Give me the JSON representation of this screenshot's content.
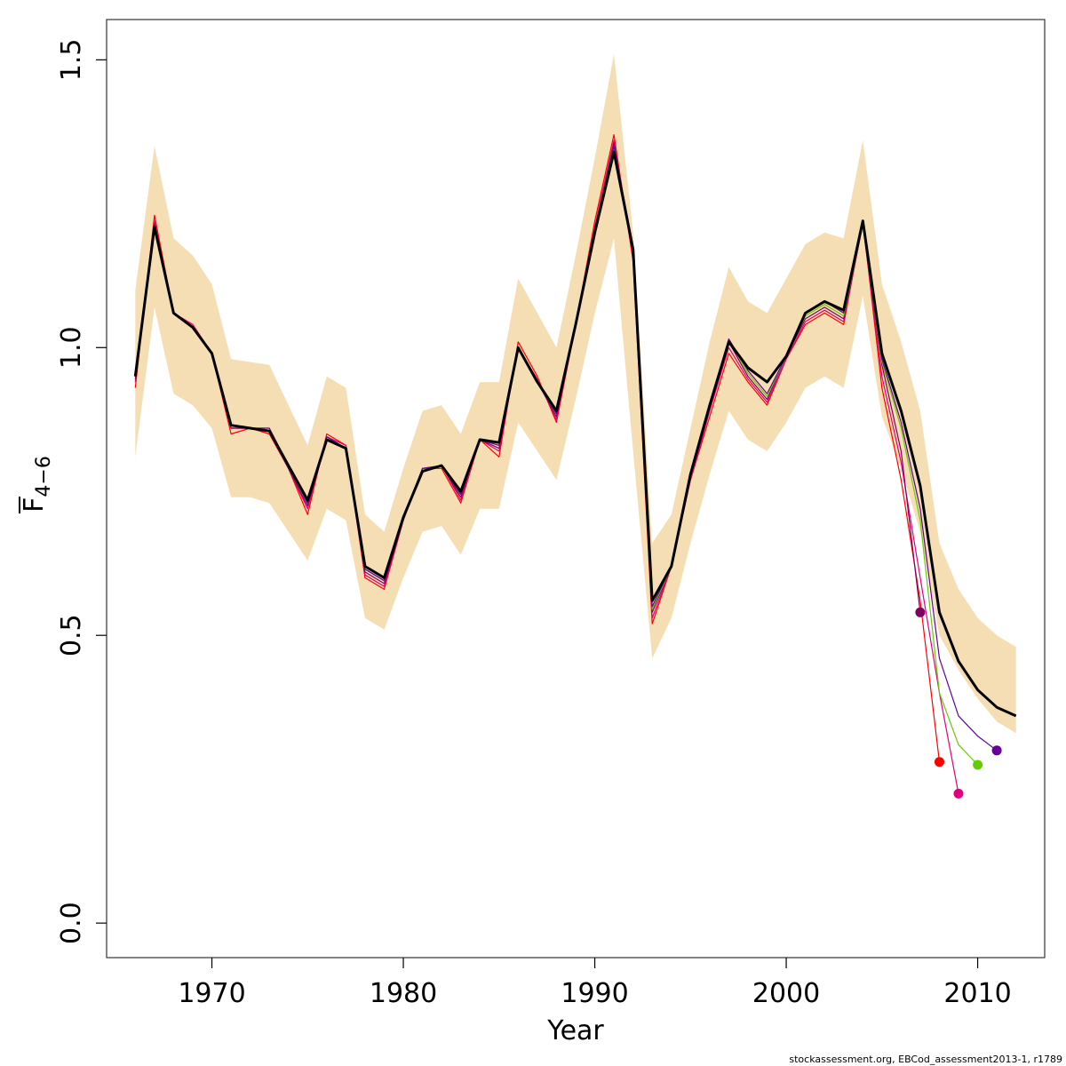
{
  "chart_data": {
    "type": "line",
    "xlabel": "Year",
    "ylabel_main": "F",
    "ylabel_sub": "4−6",
    "xlim": [
      1964.5,
      2013.5
    ],
    "ylim": [
      -0.06,
      1.57
    ],
    "x_ticks": [
      {
        "value": 1970,
        "label": "1970"
      },
      {
        "value": 1980,
        "label": "1980"
      },
      {
        "value": 1990,
        "label": "1990"
      },
      {
        "value": 2000,
        "label": "2000"
      },
      {
        "value": 2010,
        "label": "2010"
      }
    ],
    "y_ticks": [
      {
        "value": 0.0,
        "label": "0.0"
      },
      {
        "value": 0.5,
        "label": "0.5"
      },
      {
        "value": 1.0,
        "label": "1.0"
      },
      {
        "value": 1.5,
        "label": "1.5"
      }
    ],
    "band": {
      "color": "#f5deb3",
      "x": [
        1966,
        1967,
        1968,
        1969,
        1970,
        1971,
        1972,
        1973,
        1974,
        1975,
        1976,
        1977,
        1978,
        1979,
        1980,
        1981,
        1982,
        1983,
        1984,
        1985,
        1986,
        1987,
        1988,
        1989,
        1990,
        1991,
        1992,
        1993,
        1994,
        1995,
        1996,
        1997,
        1998,
        1999,
        2000,
        2001,
        2002,
        2003,
        2004,
        2005,
        2006,
        2007,
        2008,
        2009,
        2010,
        2011,
        2012
      ],
      "upper": [
        1.1,
        1.35,
        1.19,
        1.16,
        1.11,
        0.98,
        0.975,
        0.97,
        0.9,
        0.83,
        0.95,
        0.93,
        0.71,
        0.68,
        0.79,
        0.89,
        0.9,
        0.85,
        0.94,
        0.94,
        1.12,
        1.06,
        1.0,
        1.16,
        1.33,
        1.51,
        1.2,
        0.66,
        0.71,
        0.86,
        1.01,
        1.14,
        1.08,
        1.06,
        1.12,
        1.18,
        1.2,
        1.19,
        1.36,
        1.11,
        1.01,
        0.89,
        0.66,
        0.58,
        0.53,
        0.5,
        0.48
      ],
      "lower": [
        0.81,
        1.07,
        0.92,
        0.9,
        0.86,
        0.74,
        0.74,
        0.73,
        0.68,
        0.63,
        0.72,
        0.7,
        0.53,
        0.51,
        0.6,
        0.68,
        0.69,
        0.64,
        0.72,
        0.72,
        0.87,
        0.82,
        0.77,
        0.91,
        1.06,
        1.19,
        0.82,
        0.46,
        0.53,
        0.66,
        0.78,
        0.89,
        0.84,
        0.82,
        0.87,
        0.93,
        0.95,
        0.93,
        1.09,
        0.88,
        0.79,
        0.68,
        0.5,
        0.44,
        0.39,
        0.35,
        0.33
      ]
    },
    "series": [
      {
        "color": "#ff0000",
        "width": 1.2,
        "x": [
          1966,
          1967,
          1968,
          1969,
          1970,
          1971,
          1972,
          1973,
          1974,
          1975,
          1976,
          1977,
          1978,
          1979,
          1980,
          1981,
          1982,
          1983,
          1984,
          1985,
          1986,
          1987,
          1988,
          1989,
          1990,
          1991,
          1992,
          1993,
          1994,
          1995,
          1996,
          1997,
          1998,
          1999,
          2000,
          2001,
          2002,
          2003,
          2004,
          2005,
          2006,
          2007,
          2008
        ],
        "values": [
          0.93,
          1.23,
          1.06,
          1.04,
          0.99,
          0.85,
          0.86,
          0.85,
          0.79,
          0.71,
          0.85,
          0.83,
          0.6,
          0.58,
          0.7,
          0.79,
          0.79,
          0.73,
          0.84,
          0.81,
          1.01,
          0.95,
          0.87,
          1.04,
          1.22,
          1.37,
          1.15,
          0.52,
          0.62,
          0.77,
          0.88,
          0.99,
          0.94,
          0.9,
          0.98,
          1.04,
          1.06,
          1.04,
          1.22,
          0.93,
          0.77,
          0.56,
          0.28
        ],
        "end_marker": true
      },
      {
        "color": "#e0007f",
        "width": 1.2,
        "x": [
          1966,
          1967,
          1968,
          1969,
          1970,
          1971,
          1972,
          1973,
          1974,
          1975,
          1976,
          1977,
          1978,
          1979,
          1980,
          1981,
          1982,
          1983,
          1984,
          1985,
          1986,
          1987,
          1988,
          1989,
          1990,
          1991,
          1992,
          1993,
          1994,
          1995,
          1996,
          1997,
          1998,
          1999,
          2000,
          2001,
          2002,
          2003,
          2004,
          2005,
          2006,
          2007,
          2008,
          2009
        ],
        "values": [
          0.94,
          1.22,
          1.06,
          1.04,
          0.99,
          0.86,
          0.86,
          0.855,
          0.79,
          0.72,
          0.845,
          0.83,
          0.605,
          0.585,
          0.7,
          0.79,
          0.795,
          0.735,
          0.84,
          0.82,
          1.0,
          0.945,
          0.875,
          1.04,
          1.21,
          1.36,
          1.16,
          0.53,
          0.62,
          0.77,
          0.89,
          1.0,
          0.945,
          0.905,
          0.98,
          1.045,
          1.065,
          1.045,
          1.215,
          0.95,
          0.8,
          0.6,
          0.4,
          0.225
        ],
        "end_marker": true
      },
      {
        "color": "#800060",
        "width": 1.2,
        "x": [
          1966,
          1967,
          1968,
          1969,
          1970,
          1971,
          1972,
          1973,
          1974,
          1975,
          1976,
          1977,
          1978,
          1979,
          1980,
          1981,
          1982,
          1983,
          1984,
          1985,
          1986,
          1987,
          1988,
          1989,
          1990,
          1991,
          1992,
          1993,
          1994,
          1995,
          1996,
          1997,
          1998,
          1999,
          2000,
          2001,
          2002,
          2003,
          2004,
          2005,
          2006,
          2007
        ],
        "values": [
          0.945,
          1.215,
          1.06,
          1.035,
          0.99,
          0.86,
          0.86,
          0.855,
          0.79,
          0.725,
          0.84,
          0.825,
          0.61,
          0.59,
          0.7,
          0.79,
          0.795,
          0.74,
          0.84,
          0.825,
          1.0,
          0.94,
          0.88,
          1.04,
          1.2,
          1.355,
          1.17,
          0.54,
          0.62,
          0.775,
          0.895,
          1.01,
          0.95,
          0.91,
          0.985,
          1.05,
          1.07,
          1.05,
          1.215,
          0.97,
          0.82,
          0.54
        ],
        "end_marker": true
      },
      {
        "color": "#66cc00",
        "width": 1.2,
        "x": [
          1966,
          1967,
          1968,
          1969,
          1970,
          1971,
          1972,
          1973,
          1974,
          1975,
          1976,
          1977,
          1978,
          1979,
          1980,
          1981,
          1982,
          1983,
          1984,
          1985,
          1986,
          1987,
          1988,
          1989,
          1990,
          1991,
          1992,
          1993,
          1994,
          1995,
          1996,
          1997,
          1998,
          1999,
          2000,
          2001,
          2002,
          2003,
          2004,
          2005,
          2006,
          2007,
          2008,
          2009,
          2010
        ],
        "values": [
          0.95,
          1.21,
          1.06,
          1.035,
          0.99,
          0.865,
          0.86,
          0.86,
          0.795,
          0.73,
          0.845,
          0.825,
          0.615,
          0.595,
          0.705,
          0.79,
          0.795,
          0.745,
          0.84,
          0.83,
          1.0,
          0.94,
          0.885,
          1.04,
          1.2,
          1.35,
          1.175,
          0.545,
          0.62,
          0.775,
          0.9,
          1.015,
          0.955,
          0.915,
          0.985,
          1.055,
          1.075,
          1.055,
          1.215,
          0.975,
          0.86,
          0.7,
          0.4,
          0.31,
          0.275
        ],
        "end_marker": true
      },
      {
        "color": "#660099",
        "width": 1.2,
        "x": [
          1966,
          1967,
          1968,
          1969,
          1970,
          1971,
          1972,
          1973,
          1974,
          1975,
          1976,
          1977,
          1978,
          1979,
          1980,
          1981,
          1982,
          1983,
          1984,
          1985,
          1986,
          1987,
          1988,
          1989,
          1990,
          1991,
          1992,
          1993,
          1994,
          1995,
          1996,
          1997,
          1998,
          1999,
          2000,
          2001,
          2002,
          2003,
          2004,
          2005,
          2006,
          2007,
          2008,
          2009,
          2010,
          2011
        ],
        "values": [
          0.95,
          1.21,
          1.06,
          1.035,
          0.99,
          0.865,
          0.86,
          0.86,
          0.795,
          0.73,
          0.845,
          0.825,
          0.615,
          0.595,
          0.705,
          0.79,
          0.795,
          0.745,
          0.84,
          0.83,
          1.0,
          0.94,
          0.885,
          1.04,
          1.2,
          1.35,
          1.175,
          0.55,
          0.62,
          0.775,
          0.9,
          1.015,
          0.96,
          0.92,
          0.985,
          1.06,
          1.08,
          1.06,
          1.22,
          0.98,
          0.87,
          0.72,
          0.46,
          0.36,
          0.325,
          0.3
        ],
        "end_marker": true
      },
      {
        "color": "#000000",
        "width": 3,
        "x": [
          1966,
          1967,
          1968,
          1969,
          1970,
          1971,
          1972,
          1973,
          1974,
          1975,
          1976,
          1977,
          1978,
          1979,
          1980,
          1981,
          1982,
          1983,
          1984,
          1985,
          1986,
          1987,
          1988,
          1989,
          1990,
          1991,
          1992,
          1993,
          1994,
          1995,
          1996,
          1997,
          1998,
          1999,
          2000,
          2001,
          2002,
          2003,
          2004,
          2005,
          2006,
          2007,
          2008,
          2009,
          2010,
          2011,
          2012
        ],
        "values": [
          0.95,
          1.21,
          1.06,
          1.035,
          0.99,
          0.865,
          0.86,
          0.855,
          0.795,
          0.735,
          0.84,
          0.825,
          0.62,
          0.6,
          0.705,
          0.785,
          0.795,
          0.75,
          0.84,
          0.835,
          1.0,
          0.94,
          0.89,
          1.04,
          1.2,
          1.34,
          1.17,
          0.56,
          0.62,
          0.78,
          0.9,
          1.01,
          0.965,
          0.94,
          0.985,
          1.06,
          1.08,
          1.065,
          1.22,
          0.99,
          0.89,
          0.76,
          0.54,
          0.455,
          0.405,
          0.375,
          0.36
        ],
        "end_marker": false
      }
    ]
  },
  "footer": "stockassessment.org, EBCod_assessment2013-1, r1789"
}
